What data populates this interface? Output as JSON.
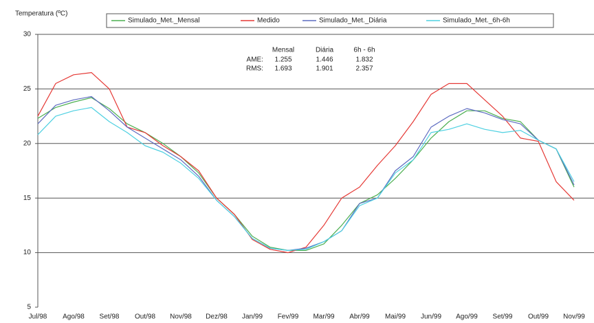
{
  "chart_data": {
    "type": "line",
    "y_label": "Temperatura (ºC)",
    "categories": [
      "Jul/98",
      null,
      "Ago/98",
      null,
      "Set/98",
      null,
      "Out/98",
      null,
      "Nov/98",
      null,
      "Dez/98",
      null,
      "Jan/99",
      null,
      "Fev/99",
      null,
      "Mar/99",
      null,
      "Abr/99",
      null,
      "Mai/99",
      null,
      "Jun/99",
      null,
      "Ago/99",
      null,
      "Set/99",
      null,
      "Out/99",
      null,
      "Nov/99"
    ],
    "series": [
      {
        "name": "Simulado_Met._Mensal",
        "color": "#4caf50",
        "values": [
          22.3,
          23.3,
          23.8,
          24.2,
          23.2,
          21.8,
          21.0,
          20.0,
          18.8,
          17.3,
          15.0,
          13.5,
          11.5,
          10.5,
          10.2,
          10.2,
          10.8,
          12.5,
          14.5,
          15.3,
          16.8,
          18.5,
          20.5,
          22.0,
          23.0,
          23.0,
          22.3,
          22.0,
          20.3,
          19.5,
          16.0
        ]
      },
      {
        "name": "Medido",
        "color": "#e53935",
        "values": [
          22.5,
          25.5,
          26.3,
          26.5,
          25.0,
          21.5,
          21.0,
          19.8,
          18.8,
          17.5,
          15.0,
          13.5,
          11.2,
          10.3,
          10.0,
          10.5,
          12.5,
          15.0,
          16.0,
          18.0,
          19.8,
          22.0,
          24.5,
          25.5,
          25.5,
          24.0,
          22.5,
          20.5,
          20.2,
          16.5,
          14.8
        ]
      },
      {
        "name": "Simulado_Met._Diária",
        "color": "#5c6bc0",
        "values": [
          21.8,
          23.5,
          24.0,
          24.3,
          23.0,
          21.5,
          20.5,
          19.5,
          18.5,
          17.0,
          14.8,
          13.3,
          11.3,
          10.4,
          10.2,
          10.4,
          11.0,
          12.0,
          14.5,
          15.0,
          17.5,
          18.8,
          21.5,
          22.5,
          23.2,
          22.8,
          22.2,
          21.8,
          20.3,
          19.5,
          16.2
        ]
      },
      {
        "name": "Simulado_Met._6h-6h",
        "color": "#4dd0e1",
        "values": [
          20.8,
          22.5,
          23.0,
          23.3,
          22.0,
          21.0,
          19.8,
          19.2,
          18.2,
          16.8,
          14.8,
          13.3,
          11.3,
          10.4,
          10.2,
          10.3,
          11.0,
          12.0,
          14.3,
          15.0,
          17.3,
          18.5,
          21.0,
          21.3,
          21.8,
          21.3,
          21.0,
          21.2,
          20.3,
          19.5,
          16.5
        ]
      }
    ],
    "ylim": [
      5,
      30
    ],
    "yticks": [
      5,
      10,
      15,
      20,
      25,
      30
    ],
    "grid": true,
    "legend": "top",
    "annotation": {
      "columns": [
        "Mensal",
        "Diária",
        "6h - 6h"
      ],
      "rows": [
        {
          "label": "AME:",
          "values": [
            1.255,
            1.446,
            1.832
          ]
        },
        {
          "label": "RMS:",
          "values": [
            1.693,
            1.901,
            2.357
          ]
        }
      ]
    }
  }
}
